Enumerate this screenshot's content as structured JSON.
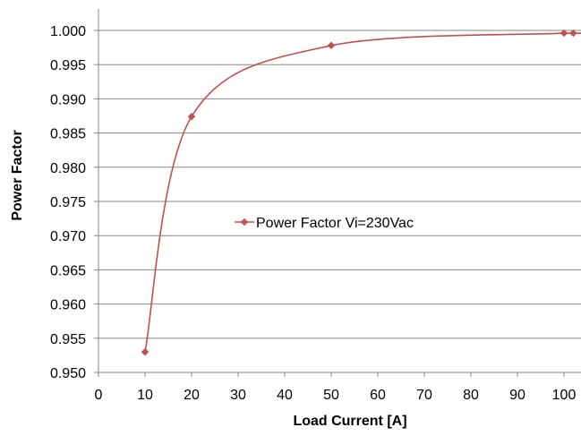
{
  "chart_data": {
    "type": "line",
    "xlabel": "Load Current [A]",
    "ylabel": "Power Factor",
    "xlim": [
      0,
      103
    ],
    "ylim": [
      0.95,
      1.0
    ],
    "x_ticks": [
      "0",
      "10",
      "20",
      "30",
      "40",
      "50",
      "60",
      "70",
      "80",
      "90",
      "100"
    ],
    "y_ticks": [
      "0.950",
      "0.955",
      "0.960",
      "0.965",
      "0.970",
      "0.975",
      "0.980",
      "0.985",
      "0.990",
      "0.995",
      "1.000"
    ],
    "grid": "horizontal",
    "legend_position": "center",
    "series": [
      {
        "name": "Power Factor Vi=230Vac",
        "color": "#C0504D",
        "marker": "diamond",
        "x": [
          10,
          20,
          50,
          100,
          102
        ],
        "y": [
          0.953,
          0.9874,
          0.9978,
          0.9996,
          0.9996
        ]
      }
    ]
  }
}
